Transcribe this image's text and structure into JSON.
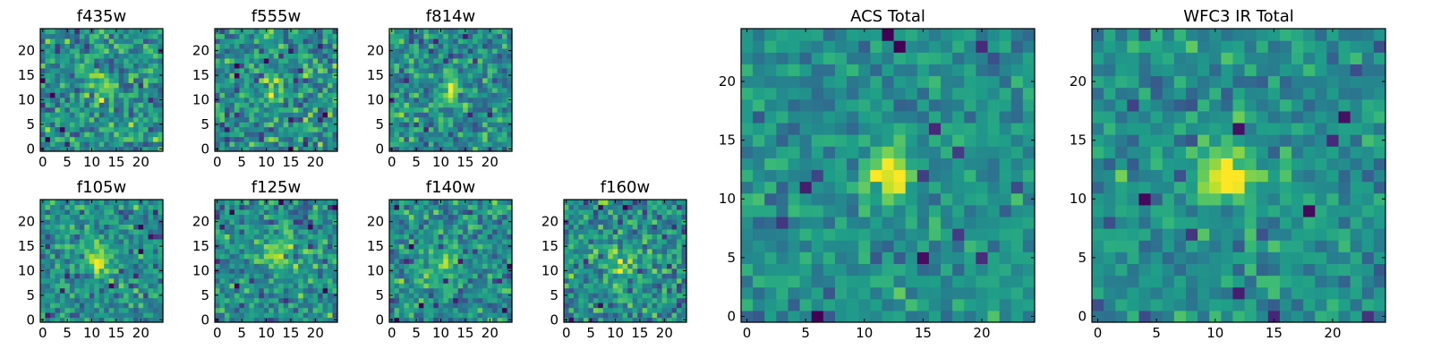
{
  "chart_data": [
    {
      "type": "heatmap",
      "title": "f435w",
      "x_ticks": [
        "0",
        "5",
        "10",
        "15",
        "20"
      ],
      "y_ticks": [
        "0",
        "5",
        "10",
        "15",
        "20"
      ],
      "xlim": [
        -0.5,
        24.5
      ],
      "ylim": [
        -0.5,
        24.5
      ],
      "colormap": "viridis",
      "pixels": 25,
      "bright_center": [
        12,
        13
      ],
      "seed": 11,
      "noise": 0.55,
      "peak": 0.35,
      "sigma": 2.0
    },
    {
      "type": "heatmap",
      "title": "f555w",
      "x_ticks": [
        "0",
        "5",
        "10",
        "15",
        "20"
      ],
      "y_ticks": [
        "0",
        "5",
        "10",
        "15",
        "20"
      ],
      "xlim": [
        -0.5,
        24.5
      ],
      "ylim": [
        -0.5,
        24.5
      ],
      "colormap": "viridis",
      "pixels": 25,
      "bright_center": [
        12,
        12
      ],
      "seed": 23,
      "noise": 0.55,
      "peak": 0.35,
      "sigma": 2.0
    },
    {
      "type": "heatmap",
      "title": "f814w",
      "x_ticks": [
        "0",
        "5",
        "10",
        "15",
        "20"
      ],
      "y_ticks": [
        "0",
        "5",
        "10",
        "15",
        "20"
      ],
      "xlim": [
        -0.5,
        24.5
      ],
      "ylim": [
        -0.5,
        24.5
      ],
      "colormap": "viridis",
      "pixels": 25,
      "bright_center": [
        12,
        12
      ],
      "seed": 37,
      "noise": 0.5,
      "peak": 0.6,
      "sigma": 1.5
    },
    {
      "type": "heatmap",
      "title": "f105w",
      "x_ticks": [
        "0",
        "5",
        "10",
        "15",
        "20"
      ],
      "y_ticks": [
        "0",
        "5",
        "10",
        "15",
        "20"
      ],
      "xlim": [
        -0.5,
        24.5
      ],
      "ylim": [
        -0.5,
        24.5
      ],
      "colormap": "viridis",
      "pixels": 25,
      "bright_center": [
        11,
        12
      ],
      "seed": 41,
      "noise": 0.45,
      "peak": 0.55,
      "sigma": 2.0
    },
    {
      "type": "heatmap",
      "title": "f125w",
      "x_ticks": [
        "0",
        "5",
        "10",
        "15",
        "20"
      ],
      "y_ticks": [
        "0",
        "5",
        "10",
        "15",
        "20"
      ],
      "xlim": [
        -0.5,
        24.5
      ],
      "ylim": [
        -0.5,
        24.5
      ],
      "colormap": "viridis",
      "pixels": 25,
      "bright_center": [
        12,
        14
      ],
      "seed": 53,
      "noise": 0.5,
      "peak": 0.35,
      "sigma": 2.5
    },
    {
      "type": "heatmap",
      "title": "f140w",
      "x_ticks": [
        "0",
        "5",
        "10",
        "15",
        "20"
      ],
      "y_ticks": [
        "0",
        "5",
        "10",
        "15",
        "20"
      ],
      "xlim": [
        -0.5,
        24.5
      ],
      "ylim": [
        -0.5,
        24.5
      ],
      "colormap": "viridis",
      "pixels": 25,
      "bright_center": [
        10,
        11
      ],
      "seed": 67,
      "noise": 0.5,
      "peak": 0.3,
      "sigma": 3.0
    },
    {
      "type": "heatmap",
      "title": "f160w",
      "x_ticks": [
        "0",
        "5",
        "10",
        "15",
        "20"
      ],
      "y_ticks": [
        "0",
        "5",
        "10",
        "15",
        "20"
      ],
      "xlim": [
        -0.5,
        24.5
      ],
      "ylim": [
        -0.5,
        24.5
      ],
      "colormap": "viridis",
      "pixels": 25,
      "bright_center": [
        12,
        12
      ],
      "seed": 79,
      "noise": 0.55,
      "peak": 0.25,
      "sigma": 2.5
    },
    {
      "type": "heatmap",
      "title": "ACS Total",
      "x_ticks": [
        "0",
        "5",
        "10",
        "15",
        "20"
      ],
      "y_ticks": [
        "0",
        "5",
        "10",
        "15",
        "20"
      ],
      "xlim": [
        -0.5,
        24.5
      ],
      "ylim": [
        -0.5,
        24.5
      ],
      "colormap": "viridis",
      "pixels": 25,
      "bright_center": [
        12,
        12
      ],
      "seed": 97,
      "noise": 0.35,
      "peak": 0.75,
      "sigma": 1.3
    },
    {
      "type": "heatmap",
      "title": "WFC3 IR Total",
      "x_ticks": [
        "0",
        "5",
        "10",
        "15",
        "20"
      ],
      "y_ticks": [
        "0",
        "5",
        "10",
        "15",
        "20"
      ],
      "xlim": [
        -0.5,
        24.5
      ],
      "ylim": [
        -0.5,
        24.5
      ],
      "colormap": "viridis",
      "pixels": 25,
      "bright_center": [
        11,
        12
      ],
      "seed": 113,
      "noise": 0.38,
      "peak": 0.65,
      "sigma": 1.8
    }
  ],
  "colors": {
    "background": "#ffffff",
    "axis": "#000000",
    "viridis_low": "#440154",
    "viridis_mid": "#21918c",
    "viridis_high": "#fde725"
  }
}
